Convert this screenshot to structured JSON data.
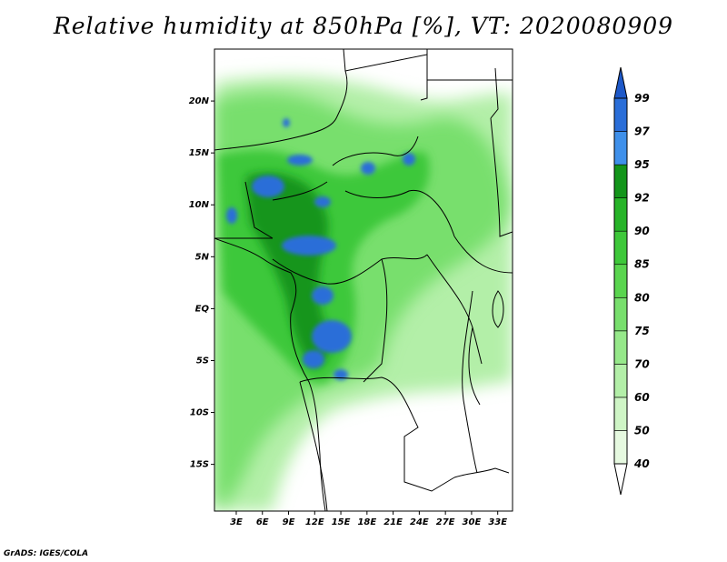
{
  "title": "Relative humidity at 850hPa [%], VT: 2020080909",
  "credit": "GrADS: IGES/COLA",
  "lat_labels": [
    "20N",
    "15N",
    "10N",
    "5N",
    "EQ",
    "5S",
    "10S",
    "15S"
  ],
  "lat_values": [
    20,
    15,
    10,
    5,
    0,
    -5,
    -10,
    -15
  ],
  "lon_labels": [
    "3E",
    "6E",
    "9E",
    "12E",
    "15E",
    "18E",
    "21E",
    "24E",
    "27E",
    "30E",
    "33E"
  ],
  "lon_values": [
    3,
    6,
    9,
    12,
    15,
    18,
    21,
    24,
    27,
    30,
    33
  ],
  "map_extent": {
    "lon": [
      0.5,
      34.7
    ],
    "lat": [
      -19.5,
      25
    ]
  },
  "colorbar": {
    "labels": [
      "40",
      "50",
      "60",
      "70",
      "75",
      "80",
      "85",
      "90",
      "92",
      "95",
      "97",
      "99"
    ],
    "colors": [
      "#ffffff",
      "#e6f9e0",
      "#cff5c6",
      "#b3efa8",
      "#96e88a",
      "#78df6d",
      "#5ad54f",
      "#3ec83a",
      "#27b428",
      "#13951a",
      "#3f90ea",
      "#2a6ed8",
      "#1d58c8"
    ]
  }
}
